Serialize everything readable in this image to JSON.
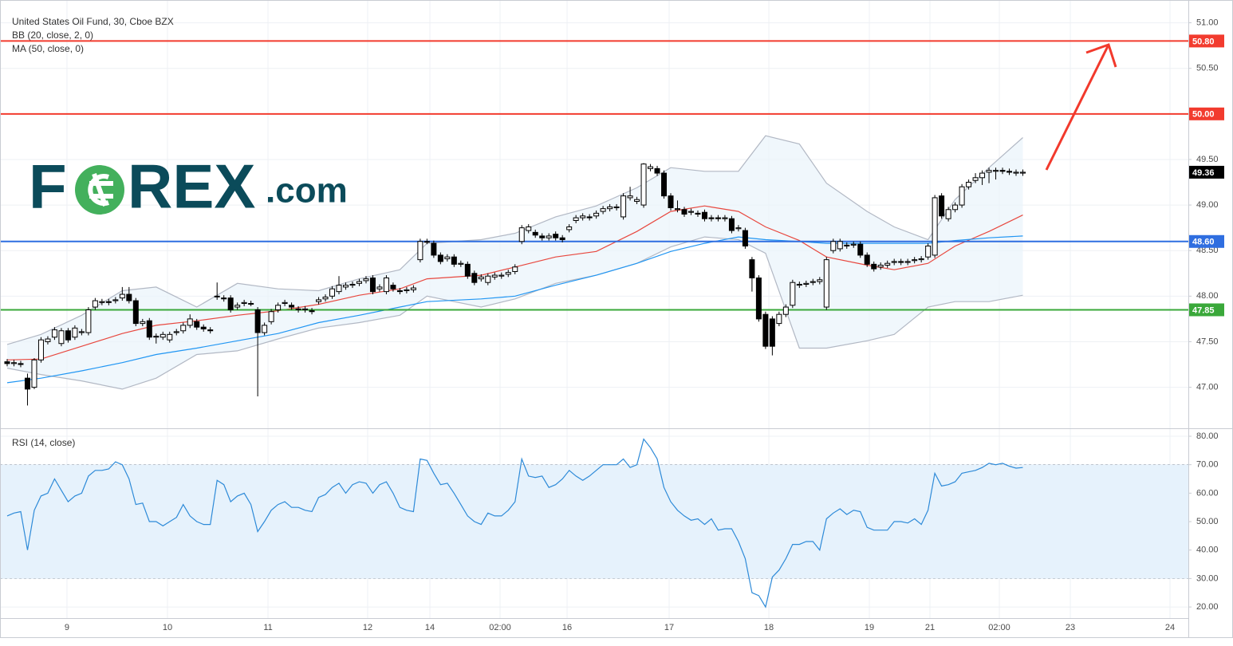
{
  "header": {
    "title": "United States Oil Fund, 30, Cboe BZX",
    "legend": [
      "BB (20, close, 2, 0)",
      "MA (50, close, 0)"
    ]
  },
  "logo": {
    "left": "F",
    "right": "REX",
    "suffix": ".com"
  },
  "chart_data": [
    {
      "type": "candlestick",
      "xlim": [
        -1.06,
        174.44
      ],
      "ylim": [
        46.55,
        51.25
      ],
      "yticks": [
        {
          "value": 47,
          "label": "47.00"
        },
        {
          "value": 47.5,
          "label": "47.50"
        },
        {
          "value": 48,
          "label": "48.00"
        },
        {
          "value": 48.5,
          "label": "48.50"
        },
        {
          "value": 49,
          "label": "49.00"
        },
        {
          "value": 49.5,
          "label": "49.50"
        },
        {
          "value": 50,
          "label": "50.00"
        },
        {
          "value": 50.5,
          "label": "50.50"
        },
        {
          "value": 51,
          "label": "51.00"
        }
      ],
      "grid": true,
      "up_color": "#ffffff",
      "down_color": "#000000",
      "open": [
        47.28,
        47.26,
        47.26,
        47.1,
        47.0,
        47.3,
        47.5,
        47.55,
        47.48,
        47.62,
        47.55,
        47.6,
        47.6,
        47.88,
        47.93,
        47.94,
        47.95,
        47.98,
        48.02,
        47.95,
        47.7,
        47.73,
        47.55,
        47.55,
        47.52,
        47.6,
        47.62,
        47.68,
        47.72,
        47.66,
        47.63,
        48.0,
        47.98,
        47.98,
        47.88,
        47.92,
        47.92,
        47.85,
        47.6,
        47.72,
        47.85,
        47.92,
        47.9,
        47.86,
        47.85,
        47.84,
        47.94,
        47.97,
        48.0,
        48.05,
        48.1,
        48.12,
        48.14,
        48.17,
        48.2,
        48.08,
        48.05,
        48.12,
        48.06,
        48.06,
        48.07,
        48.4,
        48.6,
        48.58,
        48.45,
        48.41,
        48.43,
        48.35,
        48.35,
        48.25,
        48.19,
        48.15,
        48.21,
        48.22,
        48.24,
        48.27,
        48.6,
        48.72,
        48.7,
        48.66,
        48.64,
        48.68,
        48.64,
        48.73,
        48.83,
        48.86,
        48.87,
        48.88,
        48.93,
        48.96,
        48.97,
        48.87,
        49.08,
        49.04,
        49.0,
        49.4,
        49.4,
        49.35,
        49.1,
        48.95,
        48.95,
        48.92,
        48.91,
        48.92,
        48.86,
        48.86,
        48.85,
        48.85,
        48.74,
        48.72,
        48.4,
        48.2,
        47.8,
        47.75,
        47.7,
        47.8,
        47.9,
        48.12,
        48.13,
        48.15,
        48.16,
        47.88,
        48.5,
        48.52,
        48.56,
        48.56,
        48.57,
        48.45,
        48.35,
        48.32,
        48.34,
        48.37,
        48.38,
        48.37,
        48.39,
        48.4,
        48.43,
        48.45,
        49.1,
        48.85,
        48.95,
        49.0,
        49.2,
        49.27,
        49.3,
        49.36,
        49.37,
        49.38,
        49.37,
        49.35,
        49.35
      ],
      "high": [
        47.31,
        47.3,
        47.29,
        47.15,
        47.32,
        47.55,
        47.56,
        47.66,
        47.65,
        47.65,
        47.68,
        47.64,
        47.88,
        47.98,
        47.97,
        47.97,
        47.99,
        48.1,
        48.1,
        47.98,
        47.75,
        47.76,
        47.59,
        47.61,
        47.61,
        47.64,
        47.71,
        47.8,
        47.75,
        47.69,
        47.66,
        48.15,
        48.01,
        48.01,
        47.93,
        47.96,
        47.95,
        47.88,
        47.71,
        47.86,
        47.93,
        47.96,
        47.93,
        47.89,
        47.89,
        47.87,
        47.99,
        48.02,
        48.11,
        48.22,
        48.15,
        48.16,
        48.19,
        48.22,
        48.23,
        48.13,
        48.23,
        48.15,
        48.09,
        48.1,
        48.12,
        48.63,
        48.63,
        48.61,
        48.48,
        48.46,
        48.46,
        48.39,
        48.38,
        48.28,
        48.24,
        48.25,
        48.26,
        48.26,
        48.29,
        48.35,
        48.78,
        48.79,
        48.73,
        48.69,
        48.69,
        48.71,
        48.67,
        48.79,
        48.89,
        48.91,
        48.9,
        48.94,
        48.99,
        49.01,
        49.01,
        49.13,
        49.2,
        49.09,
        49.46,
        49.45,
        49.43,
        49.38,
        49.13,
        49.05,
        48.98,
        48.96,
        48.94,
        48.95,
        48.89,
        48.89,
        48.89,
        48.88,
        48.78,
        48.75,
        48.43,
        48.23,
        47.83,
        47.78,
        47.83,
        47.91,
        48.18,
        48.16,
        48.17,
        48.19,
        48.21,
        48.43,
        48.63,
        48.63,
        48.59,
        48.6,
        48.6,
        48.48,
        48.38,
        48.37,
        48.39,
        48.41,
        48.41,
        48.41,
        48.43,
        48.44,
        48.58,
        49.11,
        49.13,
        48.98,
        49.03,
        49.23,
        49.28,
        49.35,
        49.38,
        49.41,
        49.41,
        49.41,
        49.4,
        49.39,
        49.39
      ],
      "low": [
        47.23,
        47.23,
        47.22,
        46.8,
        46.98,
        47.27,
        47.47,
        47.52,
        47.45,
        47.49,
        47.52,
        47.57,
        47.57,
        47.85,
        47.9,
        47.9,
        47.92,
        47.95,
        47.92,
        47.67,
        47.67,
        47.52,
        47.48,
        47.52,
        47.49,
        47.57,
        47.59,
        47.65,
        47.63,
        47.61,
        47.59,
        47.96,
        47.94,
        47.82,
        47.85,
        47.89,
        47.89,
        46.9,
        47.57,
        47.69,
        47.82,
        47.89,
        47.85,
        47.82,
        47.82,
        47.8,
        47.91,
        47.94,
        47.97,
        48.02,
        48.07,
        48.09,
        48.11,
        48.14,
        48.02,
        48.05,
        48.02,
        48.05,
        48.02,
        48.03,
        48.04,
        48.37,
        48.57,
        48.42,
        48.35,
        48.38,
        48.32,
        48.32,
        48.19,
        48.12,
        48.16,
        48.12,
        48.18,
        48.19,
        48.21,
        48.24,
        48.57,
        48.69,
        48.64,
        48.61,
        48.61,
        48.61,
        48.59,
        48.7,
        48.8,
        48.83,
        48.83,
        48.85,
        48.9,
        48.93,
        48.94,
        48.84,
        49.05,
        49.01,
        48.97,
        49.37,
        49.32,
        49.07,
        48.94,
        48.92,
        48.87,
        48.89,
        48.87,
        48.82,
        48.82,
        48.82,
        48.82,
        48.69,
        48.71,
        48.52,
        48.05,
        47.72,
        47.42,
        47.35,
        47.67,
        47.77,
        47.87,
        48.09,
        48.1,
        48.12,
        48.13,
        47.85,
        48.47,
        48.49,
        48.52,
        48.53,
        48.42,
        48.32,
        48.27,
        48.29,
        48.31,
        48.34,
        48.34,
        48.34,
        48.36,
        48.37,
        48.4,
        48.42,
        48.85,
        48.82,
        48.92,
        48.97,
        49.17,
        49.24,
        49.22,
        49.24,
        49.28,
        49.34,
        49.33,
        49.32,
        49.32
      ],
      "close": [
        47.26,
        47.27,
        47.25,
        46.98,
        47.3,
        47.52,
        47.53,
        47.63,
        47.62,
        47.52,
        47.65,
        47.61,
        47.85,
        47.95,
        47.94,
        47.93,
        47.96,
        48.02,
        47.95,
        47.7,
        47.72,
        47.55,
        47.56,
        47.58,
        47.58,
        47.61,
        47.68,
        47.75,
        47.66,
        47.64,
        47.62,
        48.0,
        47.97,
        47.85,
        47.9,
        47.93,
        47.92,
        47.6,
        47.68,
        47.83,
        47.9,
        47.93,
        47.88,
        47.85,
        47.86,
        47.83,
        47.96,
        47.99,
        48.08,
        48.12,
        48.12,
        48.13,
        48.16,
        48.19,
        48.05,
        48.1,
        48.2,
        48.08,
        48.05,
        48.07,
        48.09,
        48.6,
        48.6,
        48.45,
        48.38,
        48.43,
        48.35,
        48.36,
        48.22,
        48.15,
        48.21,
        48.22,
        48.23,
        48.23,
        48.26,
        48.32,
        48.75,
        48.76,
        48.67,
        48.64,
        48.66,
        48.64,
        48.62,
        48.76,
        48.86,
        48.88,
        48.86,
        48.91,
        48.96,
        48.98,
        48.98,
        49.1,
        49.1,
        49.06,
        49.45,
        49.42,
        49.35,
        49.1,
        48.97,
        48.96,
        48.9,
        48.93,
        48.9,
        48.85,
        48.85,
        48.85,
        48.86,
        48.72,
        48.75,
        48.55,
        48.2,
        47.75,
        47.45,
        47.45,
        47.8,
        47.88,
        48.15,
        48.13,
        48.14,
        48.16,
        48.18,
        48.4,
        48.6,
        48.6,
        48.55,
        48.57,
        48.45,
        48.35,
        48.3,
        48.34,
        48.36,
        48.38,
        48.37,
        48.38,
        48.4,
        48.41,
        48.55,
        49.08,
        48.88,
        48.95,
        49.0,
        49.2,
        49.25,
        49.3,
        49.35,
        49.38,
        49.38,
        49.37,
        49.36,
        49.36,
        49.36
      ],
      "indicator_x": [
        0,
        5,
        11,
        17,
        22,
        28,
        34,
        40,
        46,
        52,
        58,
        62,
        70,
        75,
        81,
        87,
        93,
        98,
        103,
        108,
        112,
        117,
        121,
        127,
        131,
        136,
        140,
        145,
        150
      ],
      "bb": {
        "line_color": "#b2b8c4",
        "fill_color": "#e9f4fb",
        "basis_color": "#e8483f",
        "upper": [
          47.47,
          47.58,
          47.79,
          48.06,
          48.1,
          47.88,
          48.14,
          48.08,
          48.06,
          48.19,
          48.29,
          48.58,
          48.62,
          48.69,
          48.87,
          48.99,
          49.19,
          49.41,
          49.37,
          49.37,
          49.76,
          49.67,
          49.24,
          48.93,
          48.76,
          48.62,
          49.06,
          49.41,
          49.74
        ],
        "basis": [
          47.3,
          47.31,
          47.45,
          47.59,
          47.68,
          47.73,
          47.79,
          47.84,
          47.91,
          48.01,
          48.08,
          48.19,
          48.23,
          48.32,
          48.43,
          48.49,
          48.71,
          48.93,
          48.99,
          48.93,
          48.76,
          48.61,
          48.43,
          48.34,
          48.29,
          48.36,
          48.55,
          48.71,
          48.89
        ],
        "lower": [
          47.21,
          47.14,
          47.07,
          46.98,
          47.1,
          47.36,
          47.4,
          47.53,
          47.65,
          47.71,
          47.79,
          48.0,
          47.88,
          47.97,
          48.14,
          48.23,
          48.36,
          48.54,
          48.65,
          48.62,
          48.47,
          47.43,
          47.43,
          47.51,
          47.58,
          47.88,
          47.94,
          47.94,
          48.01
        ]
      },
      "ma": {
        "color": "#2196f3",
        "values": [
          47.05,
          47.1,
          47.18,
          47.27,
          47.36,
          47.43,
          47.51,
          47.59,
          47.71,
          47.79,
          47.88,
          47.94,
          47.97,
          48.0,
          48.12,
          48.23,
          48.36,
          48.49,
          48.58,
          48.65,
          48.62,
          48.6,
          48.58,
          48.58,
          48.58,
          48.58,
          48.61,
          48.64,
          48.66
        ]
      },
      "hlines": [
        {
          "value": 50.8,
          "label": "50.80",
          "color": "#f23b2e"
        },
        {
          "value": 50,
          "label": "50.00",
          "color": "#f23b2e"
        },
        {
          "value": 48.6,
          "label": "48.60",
          "color": "#2f6ee0"
        },
        {
          "value": 47.85,
          "label": "47.85",
          "color": "#3aa83a"
        }
      ],
      "last_color": "#000000"
    },
    {
      "type": "line",
      "title": "RSI (14, close)",
      "color": "#2d8ad8",
      "xlim": [
        -1.06,
        174.44
      ],
      "ylim": [
        16.1,
        82.8
      ],
      "yticks": [
        {
          "value": 20,
          "label": "20.00"
        },
        {
          "value": 30,
          "label": "30.00"
        },
        {
          "value": 40,
          "label": "40.00"
        },
        {
          "value": 50,
          "label": "50.00"
        },
        {
          "value": 60,
          "label": "60.00"
        },
        {
          "value": 70,
          "label": "70.00"
        },
        {
          "value": 80,
          "label": "80.00"
        }
      ],
      "band": [
        30,
        70
      ],
      "band_color": "#e6f2fc",
      "grid": true,
      "xticks": [
        {
          "value": 8.83,
          "label": "9"
        },
        {
          "value": 23.67,
          "label": "10"
        },
        {
          "value": 38.52,
          "label": "11"
        },
        {
          "value": 53.24,
          "label": "12"
        },
        {
          "value": 62.43,
          "label": "14"
        },
        {
          "value": 72.79,
          "label": "02:00"
        },
        {
          "value": 82.69,
          "label": "16"
        },
        {
          "value": 97.76,
          "label": "17"
        },
        {
          "value": 112.49,
          "label": "18"
        },
        {
          "value": 127.33,
          "label": "19"
        },
        {
          "value": 136.28,
          "label": "21"
        },
        {
          "value": 146.53,
          "label": "02:00"
        },
        {
          "value": 157.01,
          "label": "23"
        },
        {
          "value": 171.73,
          "label": "24"
        }
      ],
      "values": [
        52,
        53,
        53.5,
        40,
        54,
        59,
        60,
        65,
        61,
        57,
        59,
        60,
        66,
        68,
        68,
        68.5,
        71,
        70,
        65,
        56,
        56.5,
        50,
        50,
        48.5,
        50,
        51.5,
        56,
        52,
        50,
        49,
        49,
        64.5,
        63,
        57,
        59,
        60,
        56,
        46.5,
        50,
        54,
        56,
        57,
        55,
        55,
        54,
        53.5,
        58.5,
        59.5,
        62,
        63.5,
        60,
        63,
        64,
        63.5,
        60,
        63,
        64,
        60,
        55,
        54,
        53.5,
        72,
        71.5,
        67,
        63,
        63.5,
        60,
        56,
        52,
        50,
        49,
        53,
        52,
        52,
        54,
        57,
        72,
        66,
        65.5,
        66,
        62,
        63,
        65,
        68,
        66,
        64.5,
        66,
        68,
        70,
        70,
        70,
        72,
        69,
        70,
        79,
        76,
        72,
        62,
        57,
        54,
        52,
        50.5,
        51,
        49,
        51,
        47,
        47.5,
        47.5,
        43,
        37,
        25,
        24,
        20,
        30.5,
        33,
        37,
        42,
        42,
        43,
        43,
        40,
        51,
        53,
        54.5,
        52.5,
        54,
        53.5,
        48,
        47,
        47,
        47,
        50,
        50,
        49.5,
        51,
        49,
        54,
        67,
        62.5,
        63,
        64,
        67,
        67.5,
        68,
        69,
        70.5,
        70,
        70.5,
        69.5,
        68.8,
        69
      ]
    }
  ]
}
